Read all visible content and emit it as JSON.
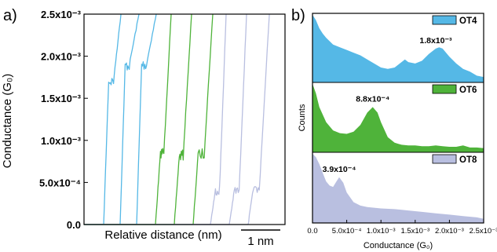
{
  "chart_data": [
    {
      "panel": "a)",
      "type": "line",
      "xlabel": "Relative distance (nm)",
      "ylabel": "Conductance (G₀)",
      "ylim": [
        0,
        0.0025
      ],
      "yticks": [
        {
          "value": 0,
          "label": "0.0"
        },
        {
          "value": 0.0005,
          "label": "5.0x10⁻⁴"
        },
        {
          "value": 0.001,
          "label": "1.0x10⁻³"
        },
        {
          "value": 0.0015,
          "label": "1.5x10⁻³"
        },
        {
          "value": 0.002,
          "label": "2.0x10⁻³"
        },
        {
          "value": 0.0025,
          "label": "2.5x10⁻³"
        }
      ],
      "scale_bar_label": "1 nm",
      "series": [
        {
          "color": "#55b8e6",
          "traces": 3,
          "plateau": 0.00185
        },
        {
          "color": "#4fb33a",
          "traces": 3,
          "plateau": 0.00088
        },
        {
          "color": "#b9bfe0",
          "traces": 3,
          "plateau": 0.00039
        }
      ]
    },
    {
      "panel": "b)",
      "type": "area",
      "xlabel": "Conductance (G₀)",
      "ylabel": "Counts",
      "xlim": [
        0,
        0.0025
      ],
      "xticks": [
        {
          "value": 0,
          "label": "0.0"
        },
        {
          "value": 0.0005,
          "label": "5.0x10⁻⁴"
        },
        {
          "value": 0.001,
          "label": "1.0x10⁻³"
        },
        {
          "value": 0.0015,
          "label": "1.5x10⁻³"
        },
        {
          "value": 0.002,
          "label": "2.0x10⁻³"
        },
        {
          "value": 0.0025,
          "label": "2.5x10⁻³"
        }
      ],
      "series": [
        {
          "name": "OT4",
          "color": "#55b8e6",
          "peak": 0.0018,
          "peak_label": "1.8x10⁻³",
          "x": [
            0,
            5e-05,
            0.0001,
            0.00015,
            0.0002,
            0.0003,
            0.0004,
            0.0005,
            0.0006,
            0.0007,
            0.0008,
            0.0009,
            0.001,
            0.0011,
            0.0012,
            0.0013,
            0.00135,
            0.0014,
            0.0015,
            0.0016,
            0.0017,
            0.0018,
            0.00185,
            0.0019,
            0.002,
            0.0021,
            0.0022,
            0.0023,
            0.0024,
            0.0025
          ],
          "y": [
            1.0,
            0.92,
            0.8,
            0.72,
            0.66,
            0.56,
            0.52,
            0.48,
            0.44,
            0.4,
            0.34,
            0.28,
            0.22,
            0.2,
            0.22,
            0.3,
            0.34,
            0.3,
            0.28,
            0.32,
            0.42,
            0.5,
            0.52,
            0.5,
            0.38,
            0.28,
            0.2,
            0.16,
            0.1,
            0.08
          ]
        },
        {
          "name": "OT6",
          "color": "#4fb33a",
          "peak": 0.00088,
          "peak_label": "8.8x10⁻⁴",
          "x": [
            0,
            5e-05,
            0.0001,
            0.0002,
            0.0003,
            0.0004,
            0.0005,
            0.0006,
            0.0007,
            0.0008,
            0.00088,
            0.00095,
            0.001,
            0.0011,
            0.0012,
            0.0013,
            0.0014,
            0.0015,
            0.0016,
            0.0017,
            0.0018,
            0.0019,
            0.002,
            0.0021,
            0.0022,
            0.0023,
            0.0024,
            0.0025
          ],
          "y": [
            1.0,
            0.86,
            0.66,
            0.44,
            0.32,
            0.28,
            0.27,
            0.3,
            0.4,
            0.58,
            0.66,
            0.58,
            0.44,
            0.22,
            0.14,
            0.11,
            0.1,
            0.1,
            0.09,
            0.09,
            0.1,
            0.09,
            0.08,
            0.08,
            0.1,
            0.07,
            0.07,
            0.06
          ]
        },
        {
          "name": "OT8",
          "color": "#b9bfe0",
          "peak": 0.00039,
          "peak_label": "3.9x10⁻⁴",
          "x": [
            0,
            5e-05,
            0.0001,
            0.00015,
            0.0002,
            0.00025,
            0.0003,
            0.00035,
            0.00039,
            0.00045,
            0.0005,
            0.0006,
            0.0007,
            0.0008,
            0.0009,
            0.001,
            0.0012,
            0.0014,
            0.0016,
            0.0018,
            0.002,
            0.0022,
            0.0024,
            0.0025
          ],
          "y": [
            1.0,
            0.95,
            0.85,
            0.72,
            0.6,
            0.54,
            0.52,
            0.6,
            0.66,
            0.58,
            0.44,
            0.3,
            0.25,
            0.23,
            0.22,
            0.21,
            0.2,
            0.18,
            0.16,
            0.14,
            0.12,
            0.1,
            0.08,
            0.06
          ]
        }
      ]
    }
  ]
}
